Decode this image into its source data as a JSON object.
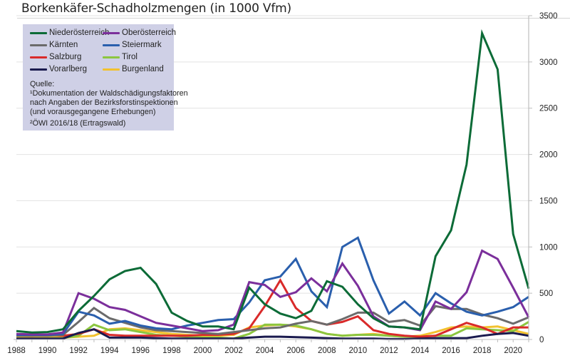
{
  "chart_data": {
    "type": "line",
    "title": "Borkenkäfer-Schadholzmengen (in 1000 Vfm)",
    "xlabel": "",
    "ylabel": "",
    "x": [
      1988,
      1989,
      1990,
      1991,
      1992,
      1993,
      1994,
      1995,
      1996,
      1997,
      1998,
      1999,
      2000,
      2001,
      2002,
      2003,
      2004,
      2005,
      2006,
      2007,
      2008,
      2009,
      2010,
      2011,
      2012,
      2013,
      2014,
      2015,
      2016,
      2017,
      2018,
      2019,
      2020,
      2021
    ],
    "xlim": [
      1988,
      2021
    ],
    "ylim": [
      0,
      3500
    ],
    "x_ticks": [
      "1988",
      "1990",
      "1992",
      "1994",
      "1996",
      "1998",
      "2000",
      "2002",
      "2004",
      "2006",
      "2008",
      "2010",
      "2012",
      "2014",
      "2016",
      "2018",
      "2020"
    ],
    "y_ticks": [
      "0",
      "500",
      "1000",
      "1500",
      "2000",
      "2500",
      "3000",
      "3500"
    ],
    "y_axis_side": "right",
    "grid": "horizontal",
    "legend_position": "top-left",
    "series": [
      {
        "name": "Niederösterreich",
        "color": "#0c6b37",
        "values": [
          90,
          75,
          80,
          110,
          310,
          470,
          650,
          740,
          775,
          600,
          290,
          200,
          140,
          140,
          110,
          560,
          380,
          280,
          230,
          310,
          630,
          570,
          380,
          230,
          140,
          130,
          110,
          900,
          1180,
          1890,
          3310,
          2920,
          1140,
          550
        ]
      },
      {
        "name": "Oberösterreich",
        "color": "#7b2f9b",
        "values": [
          60,
          55,
          55,
          75,
          500,
          440,
          350,
          320,
          250,
          180,
          150,
          120,
          90,
          100,
          160,
          620,
          590,
          460,
          510,
          660,
          520,
          820,
          580,
          250,
          140,
          130,
          100,
          410,
          330,
          510,
          960,
          870,
          560,
          240
        ]
      },
      {
        "name": "Kärnten",
        "color": "#6b6b6b",
        "values": [
          40,
          40,
          40,
          50,
          190,
          340,
          230,
          180,
          130,
          100,
          90,
          80,
          70,
          60,
          80,
          100,
          120,
          130,
          170,
          200,
          160,
          220,
          290,
          290,
          190,
          210,
          150,
          360,
          330,
          330,
          270,
          230,
          170,
          240
        ]
      },
      {
        "name": "Steiermark",
        "color": "#2a5fad",
        "values": [
          50,
          50,
          50,
          60,
          300,
          260,
          170,
          200,
          150,
          120,
          110,
          150,
          180,
          210,
          220,
          400,
          640,
          680,
          870,
          520,
          350,
          1000,
          1100,
          640,
          280,
          410,
          260,
          500,
          390,
          300,
          260,
          300,
          350,
          460
        ]
      },
      {
        "name": "Salzburg",
        "color": "#d92a2a",
        "values": [
          45,
          40,
          50,
          40,
          60,
          110,
          50,
          40,
          40,
          40,
          40,
          40,
          50,
          50,
          60,
          120,
          360,
          640,
          340,
          200,
          160,
          190,
          250,
          100,
          60,
          40,
          30,
          40,
          110,
          180,
          130,
          60,
          130,
          130
        ]
      },
      {
        "name": "Tirol",
        "color": "#8cc63f",
        "values": [
          10,
          10,
          10,
          15,
          40,
          160,
          100,
          110,
          80,
          50,
          40,
          30,
          20,
          20,
          10,
          60,
          160,
          160,
          150,
          110,
          60,
          40,
          50,
          50,
          40,
          30,
          30,
          40,
          40,
          120,
          110,
          100,
          90,
          190
        ]
      },
      {
        "name": "Vorarlberg",
        "color": "#1a1a4e",
        "values": [
          10,
          10,
          10,
          10,
          70,
          110,
          20,
          20,
          20,
          15,
          10,
          10,
          10,
          10,
          10,
          20,
          30,
          30,
          25,
          20,
          15,
          10,
          10,
          10,
          5,
          5,
          10,
          15,
          15,
          15,
          40,
          60,
          70,
          40
        ]
      },
      {
        "name": "Burgenland",
        "color": "#f2c12e",
        "values": [
          30,
          30,
          30,
          20,
          30,
          40,
          110,
          120,
          100,
          80,
          60,
          50,
          40,
          40,
          50,
          130,
          150,
          160,
          140,
          110,
          60,
          40,
          50,
          60,
          40,
          30,
          40,
          80,
          130,
          140,
          130,
          140,
          100,
          60
        ]
      }
    ]
  },
  "legend": {
    "items": [
      {
        "label": "Niederösterreich",
        "color": "#0c6b37"
      },
      {
        "label": "Oberösterreich",
        "color": "#7b2f9b"
      },
      {
        "label": "Kärnten",
        "color": "#6b6b6b"
      },
      {
        "label": "Steiermark",
        "color": "#2a5fad"
      },
      {
        "label": "Salzburg",
        "color": "#d92a2a"
      },
      {
        "label": "Tirol",
        "color": "#8cc63f"
      },
      {
        "label": "Vorarlberg",
        "color": "#1a1a4e"
      },
      {
        "label": "Burgenland",
        "color": "#f2c12e"
      }
    ],
    "source_heading": "Quelle:",
    "source_lines": [
      "¹Dokumentation der Waldschädigungsfaktoren",
      "nach Angaben der Bezirksforstinspektionen",
      "(und vorausgegangene Erhebungen)"
    ],
    "source_line2": "²ÖWI 2016/18 (Ertragswald)"
  }
}
